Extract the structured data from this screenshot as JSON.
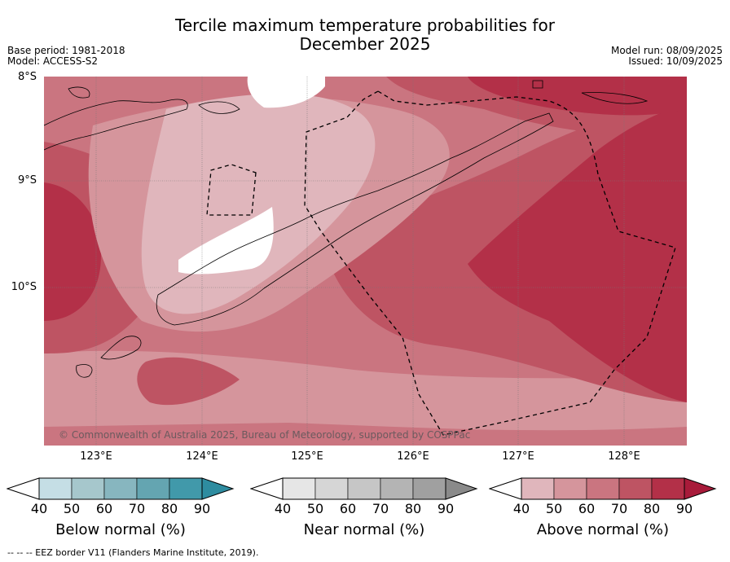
{
  "title_line1": "Tercile maximum temperature probabilities for",
  "title_line2": "December 2025",
  "base_period": "Base period: 1981-2018",
  "model": "Model: ACCESS-S2",
  "model_run": "Model run: 08/09/2025",
  "issued": "Issued: 10/09/2025",
  "lat_labels": [
    "8°S",
    "9°S",
    "10°S"
  ],
  "lon_labels": [
    "123°E",
    "124°E",
    "125°E",
    "126°E",
    "127°E",
    "128°E"
  ],
  "copyright": "© Commonwealth of Australia 2025, Bureau of Meteorology, supported by COSPPac",
  "footnote": "--  --  -- EEZ border V11 (Flanders Marine Institute, 2019).",
  "colorbars": [
    {
      "title": "Below normal (%)",
      "ticks": [
        "40",
        "50",
        "60",
        "70",
        "80",
        "90"
      ],
      "colors": [
        "#c5dee5",
        "#a6c7cc",
        "#87b6bf",
        "#64a5b1",
        "#4199aa",
        "#2e8ca0"
      ]
    },
    {
      "title": "Near normal (%)",
      "ticks": [
        "40",
        "50",
        "60",
        "70",
        "80",
        "90"
      ],
      "colors": [
        "#e6e6e6",
        "#d6d6d6",
        "#c6c6c6",
        "#b4b4b4",
        "#a0a0a0",
        "#8a8a8a"
      ]
    },
    {
      "title": "Above normal (%)",
      "ticks": [
        "40",
        "50",
        "60",
        "70",
        "80",
        "90"
      ],
      "colors": [
        "#e0b6bc",
        "#d5959c",
        "#ca7580",
        "#be5463",
        "#b33048",
        "#a81b3a"
      ]
    }
  ]
}
